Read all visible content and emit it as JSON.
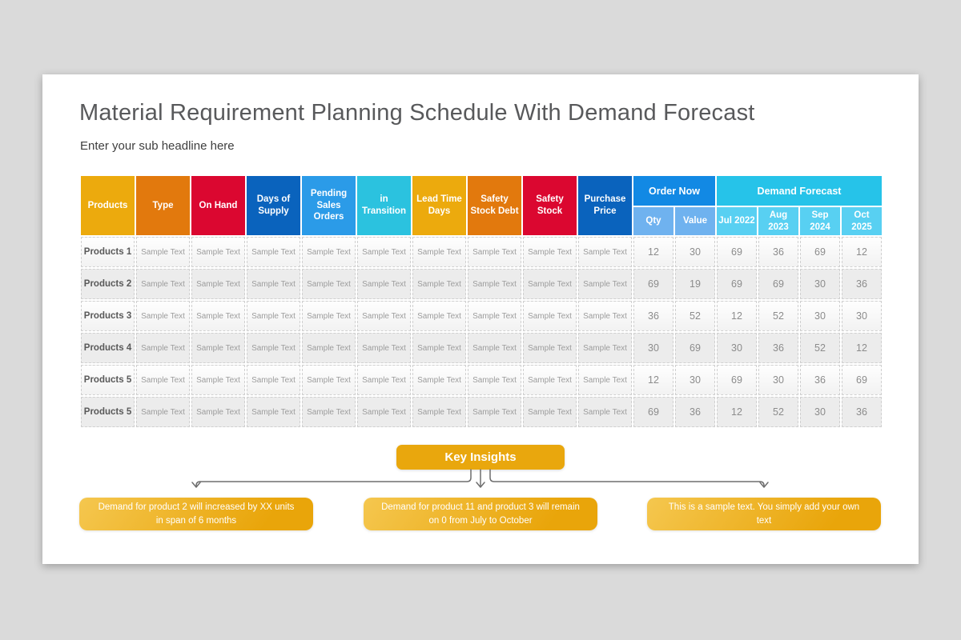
{
  "page": {
    "title": "Material Requirement Planning Schedule With Demand Forecast",
    "subtitle": "Enter your sub headline here"
  },
  "table": {
    "sample_text": "Sample Text",
    "columns": [
      {
        "label": "Products",
        "color": "#ECAA0D"
      },
      {
        "label": "Type",
        "color": "#E2790D"
      },
      {
        "label": "On Hand",
        "color": "#DB0730"
      },
      {
        "label": "Days of Supply",
        "color": "#0A63BD"
      },
      {
        "label": "Pending Sales Orders",
        "color": "#2B9BE8"
      },
      {
        "label": "in Transition",
        "color": "#2BC2DF"
      },
      {
        "label": "Lead Time Days",
        "color": "#ECAA0D"
      },
      {
        "label": "Safety Stock Debt",
        "color": "#E2790D"
      },
      {
        "label": "Safety Stock",
        "color": "#DB0730"
      },
      {
        "label": "Purchase Price",
        "color": "#0A63BD"
      }
    ],
    "groups": [
      {
        "label": "Order Now",
        "color": "#1289E4",
        "sub_color": "#6FB2EF",
        "children": [
          "Qty",
          "Value"
        ]
      },
      {
        "label": "Demand Forecast",
        "color": "#26C3E9",
        "sub_color": "#58D0F2",
        "children": [
          "Jul 2022",
          "Aug 2023",
          "Sep 2024",
          "Oct 2025"
        ]
      }
    ],
    "rows": [
      {
        "product": "Products 1",
        "values": [
          12,
          30,
          69,
          36,
          69,
          12
        ]
      },
      {
        "product": "Products 2",
        "values": [
          69,
          19,
          69,
          69,
          30,
          36
        ]
      },
      {
        "product": "Products 3",
        "values": [
          36,
          52,
          12,
          52,
          30,
          30
        ]
      },
      {
        "product": "Products 4",
        "values": [
          30,
          69,
          30,
          36,
          52,
          12
        ]
      },
      {
        "product": "Products 5",
        "values": [
          12,
          30,
          69,
          30,
          36,
          69
        ]
      },
      {
        "product": "Products 5",
        "values": [
          69,
          36,
          12,
          52,
          30,
          36
        ]
      }
    ]
  },
  "insights": {
    "button_label": "Key Insights",
    "callouts": [
      {
        "text": "Demand for product 2 will increased by XX units in span of 6 months"
      },
      {
        "text": "Demand for product 11 and product 3 will remain on 0 from July to October"
      },
      {
        "text": "This is a sample text. You simply add your own text"
      }
    ]
  },
  "colors": {
    "button": "#E9A70D",
    "callout_gradient_start": "#F5C74F",
    "callout_gradient_end": "#E9A50A",
    "connector": "#6E6E6E"
  }
}
